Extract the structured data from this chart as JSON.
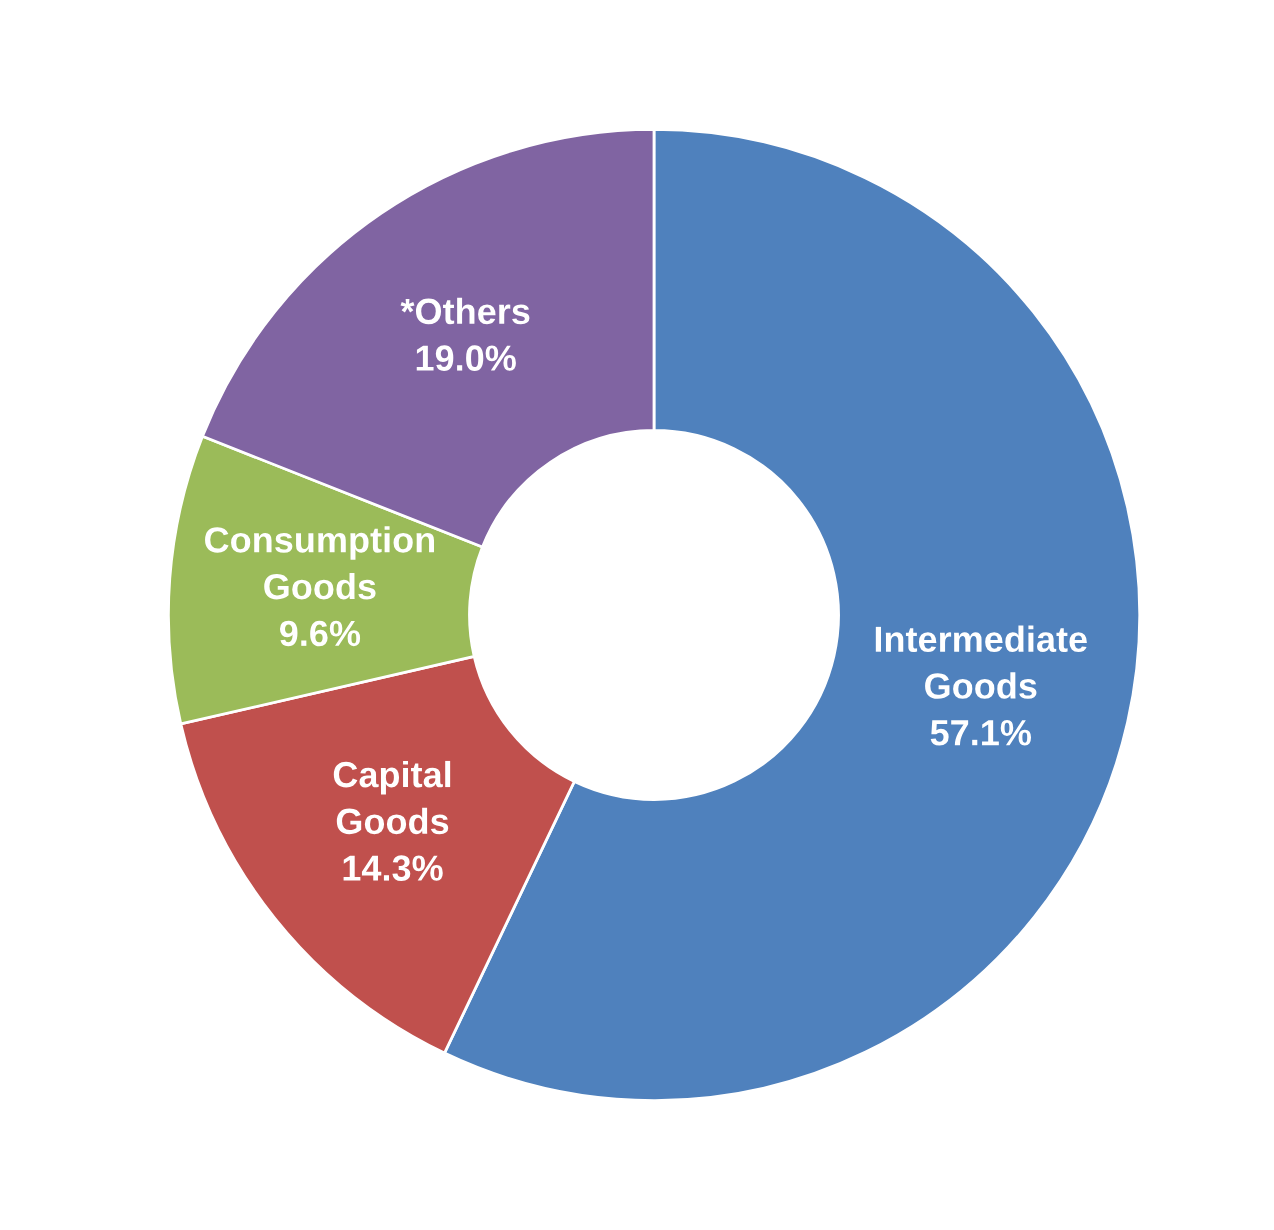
{
  "chart_data": {
    "type": "donut",
    "categories": [
      "Intermediate Goods",
      "Capital Goods",
      "Consumption Goods",
      "*Others"
    ],
    "values": [
      57.1,
      14.3,
      9.6,
      19.0
    ],
    "colors": [
      "#4f81bd",
      "#c0504d",
      "#9bbb59",
      "#8064a2"
    ],
    "value_labels": [
      "57.1%",
      "14.3%",
      "9.6%",
      "19.0%"
    ],
    "legend": false
  }
}
